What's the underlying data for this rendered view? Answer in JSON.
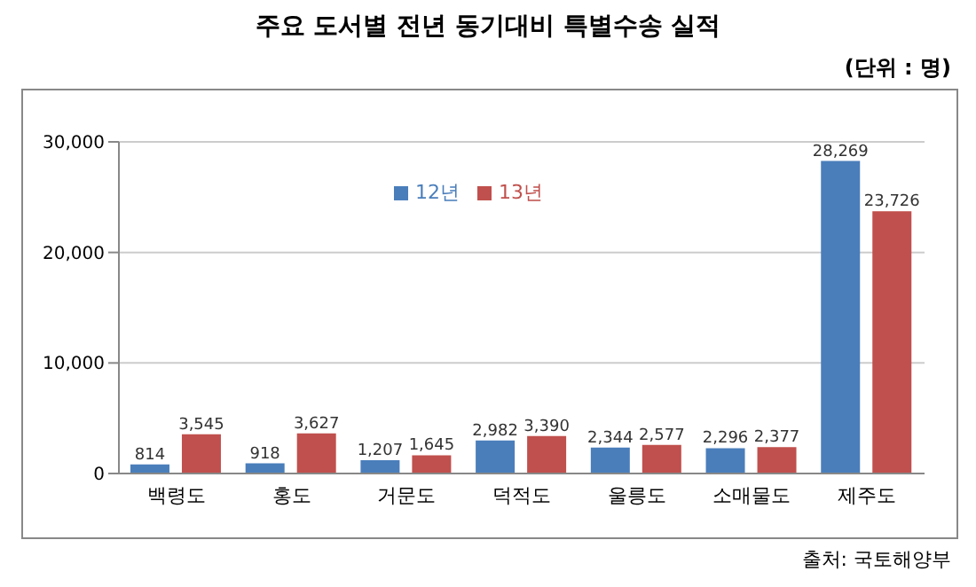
{
  "chart_data": {
    "type": "bar",
    "title": "주요 도서별 전년 동기대비 특별수송 실적",
    "subtitle": "(단위 : 명)",
    "categories": [
      "백령도",
      "홍도",
      "거문도",
      "덕적도",
      "울릉도",
      "소매물도",
      "제주도"
    ],
    "series": [
      {
        "name": "12년",
        "color": "#4a7ebb",
        "values": [
          814,
          918,
          1207,
          2982,
          2344,
          2296,
          28269
        ],
        "value_labels": [
          "814",
          "918",
          "1,207",
          "2,982",
          "2,344",
          "2,296",
          "28,269"
        ]
      },
      {
        "name": "13년",
        "color": "#c0504d",
        "values": [
          3545,
          3627,
          1645,
          3390,
          2577,
          2377,
          23726
        ],
        "value_labels": [
          "3,545",
          "3,627",
          "1,645",
          "3,390",
          "2,577",
          "2,377",
          "23,726"
        ]
      }
    ],
    "ylim": [
      0,
      30000
    ],
    "yticks": [
      {
        "value": 0,
        "label": "0"
      },
      {
        "value": 10000,
        "label": "10,000"
      },
      {
        "value": 20000,
        "label": "20,000"
      },
      {
        "value": 30000,
        "label": "30,000"
      }
    ],
    "grid": "y",
    "legend": "top",
    "annotations": [
      "출처: 국토해양부"
    ]
  }
}
